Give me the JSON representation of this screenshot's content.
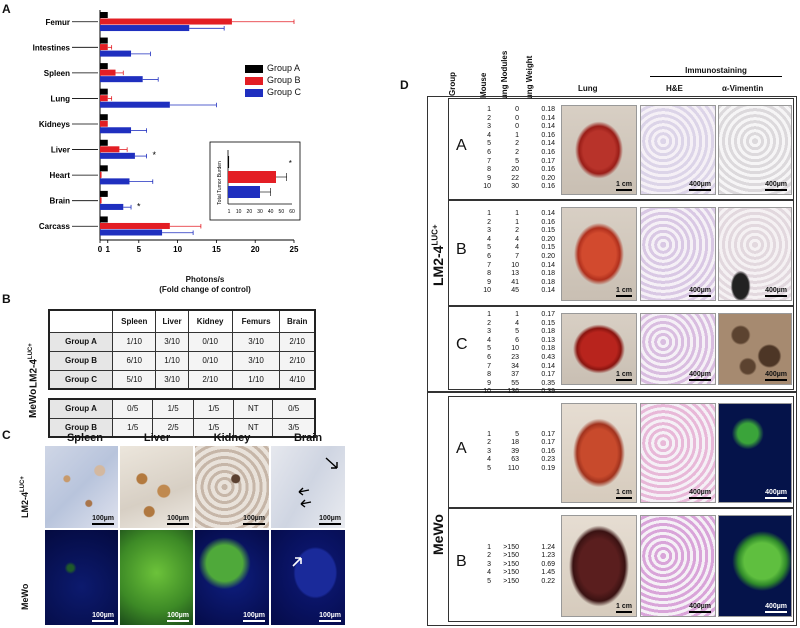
{
  "panel_labels": {
    "a": "A",
    "b": "B",
    "c": "C",
    "d": "D"
  },
  "colors": {
    "group_a": "#000000",
    "group_b": "#e31e24",
    "group_c": "#1f2fbf"
  },
  "chart_data": [
    {
      "type": "bar",
      "orientation": "horizontal",
      "categories": [
        "Femur",
        "Intestines",
        "Spleen",
        "Lung",
        "Kidneys",
        "Liver",
        "Heart",
        "Brain",
        "Carcass"
      ],
      "series": [
        {
          "name": "Group A",
          "values": [
            1,
            1,
            1,
            1,
            1,
            1,
            1,
            1,
            1
          ]
        },
        {
          "name": "Group B",
          "values": [
            17,
            1,
            2,
            1,
            1,
            2.5,
            0.2,
            0.2,
            9
          ]
        },
        {
          "name": "Group C",
          "values": [
            11.5,
            4,
            5.5,
            9,
            4,
            4.5,
            3.8,
            3,
            8
          ]
        }
      ],
      "errors": {
        "Group B": [
          8,
          0.5,
          1,
          0.5,
          0,
          1,
          0,
          0,
          4
        ],
        "Group C": [
          4.5,
          2.5,
          2,
          6,
          2,
          1.5,
          3,
          1,
          4
        ]
      },
      "significance": {
        "Liver": "*",
        "Brain": "*"
      },
      "xticks": [
        "0",
        "1",
        "5",
        "10",
        "15",
        "20",
        "25"
      ],
      "xlim": [
        0,
        25
      ],
      "xlabel": "Photons/s",
      "xlabel2": "(Fold change of control)",
      "legend": [
        "Group A",
        "Group B",
        "Group C"
      ],
      "legend_position": "right"
    },
    {
      "type": "bar",
      "orientation": "horizontal",
      "ylabel": "Total Tumor Burden",
      "xticks": [
        "1",
        "10",
        "20",
        "30",
        "40",
        "50",
        "60"
      ],
      "xlim": [
        0,
        60
      ],
      "series": [
        {
          "name": "Group A",
          "values": [
            1
          ]
        },
        {
          "name": "Group B",
          "values": [
            45
          ]
        },
        {
          "name": "Group C",
          "values": [
            30
          ]
        }
      ],
      "errors": {
        "Group B": [
          10
        ],
        "Group C": [
          10
        ]
      },
      "significance": "*"
    }
  ],
  "table_b": {
    "columns": [
      "Spleen",
      "Liver",
      "Kidney",
      "Femurs",
      "Brain"
    ],
    "lm2_label": "LM2-4",
    "lm2_sup": "LUC+",
    "lm2_rows": [
      {
        "group": "Group A",
        "cells": [
          "1/10",
          "3/10",
          "0/10",
          "3/10",
          "2/10"
        ]
      },
      {
        "group": "Group B",
        "cells": [
          "6/10",
          "1/10",
          "0/10",
          "3/10",
          "2/10"
        ]
      },
      {
        "group": "Group C",
        "cells": [
          "5/10",
          "3/10",
          "2/10",
          "1/10",
          "4/10"
        ]
      }
    ],
    "mewo_label": "MeWo",
    "mewo_rows": [
      {
        "group": "Group A",
        "cells": [
          "0/5",
          "1/5",
          "1/5",
          "NT",
          "0/5"
        ]
      },
      {
        "group": "Group B",
        "cells": [
          "1/5",
          "2/5",
          "1/5",
          "NT",
          "3/5"
        ]
      }
    ]
  },
  "panel_c": {
    "columns": [
      "Spleen",
      "Liver",
      "Kidney",
      "Brain"
    ],
    "row1_label": "LM2-4",
    "row1_sup": "LUC+",
    "row2_label": "MeWo",
    "scale": "100µm"
  },
  "panel_d": {
    "headers": {
      "group": "Group",
      "mouse": "Mouse",
      "nodules": "Lung Nodules",
      "weight": "Lung Weight",
      "lung": "Lung",
      "immuno": "Immunostaining",
      "he": "H&E",
      "vimentin": "α-Vimentin"
    },
    "lm2_label": "LM2-4",
    "lm2_sup": "LUC+",
    "mewo_label": "MeWo",
    "scale_cm": "1 cm",
    "scale_um": "400µm",
    "groups": [
      {
        "letter": "A",
        "mouse": [
          "1",
          "2",
          "3",
          "4",
          "5",
          "6",
          "7",
          "8",
          "9",
          "10"
        ],
        "nodules": [
          "0",
          "0",
          "0",
          "1",
          "2",
          "2",
          "5",
          "20",
          "22",
          "30"
        ],
        "weight": [
          "0.18",
          "0.14",
          "0.14",
          "0.16",
          "0.14",
          "0.16",
          "0.17",
          "0.16",
          "0.20",
          "0.16"
        ]
      },
      {
        "letter": "B",
        "mouse": [
          "1",
          "2",
          "3",
          "4",
          "5",
          "6",
          "7",
          "8",
          "9",
          "10"
        ],
        "nodules": [
          "1",
          "1",
          "2",
          "4",
          "4",
          "7",
          "10",
          "13",
          "41",
          "45"
        ],
        "weight": [
          "0.14",
          "0.16",
          "0.15",
          "0.20",
          "0.15",
          "0.20",
          "0.14",
          "0.18",
          "0.18",
          "0.14"
        ]
      },
      {
        "letter": "C",
        "mouse": [
          "1",
          "2",
          "3",
          "4",
          "5",
          "6",
          "7",
          "8",
          "9",
          "10"
        ],
        "nodules": [
          "1",
          "4",
          "5",
          "6",
          "10",
          "23",
          "34",
          "37",
          "55",
          "136"
        ],
        "weight": [
          "0.17",
          "0.15",
          "0.18",
          "0.13",
          "0.18",
          "0.43",
          "0.14",
          "0.17",
          "0.35",
          "0.39"
        ]
      },
      {
        "letter": "A",
        "mouse": [
          "1",
          "2",
          "3",
          "4",
          "5"
        ],
        "nodules": [
          "5",
          "18",
          "39",
          "63",
          "110"
        ],
        "weight": [
          "0.17",
          "0.17",
          "0.16",
          "0.23",
          "0.19"
        ]
      },
      {
        "letter": "B",
        "mouse": [
          "1",
          "2",
          "3",
          "4",
          "5"
        ],
        "nodules": [
          ">150",
          ">150",
          ">150",
          ">150",
          ">150"
        ],
        "weight": [
          "1.24",
          "1.23",
          "0.69",
          "1.45",
          "0.22"
        ]
      }
    ]
  }
}
